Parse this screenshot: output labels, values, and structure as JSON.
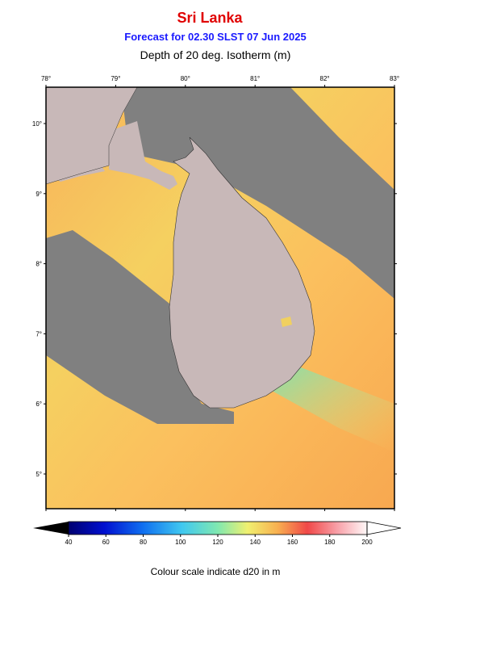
{
  "header": {
    "title": "Sri Lanka",
    "subtitle": "Forecast for  02.30 SLST 07 Jun 2025",
    "variable": "Depth of 20 deg. Isotherm (m)"
  },
  "map": {
    "lon_labels": [
      "78°",
      "79°",
      "80°",
      "81°",
      "82°",
      "83°"
    ],
    "lat_labels": [
      "10°",
      "9°",
      "8°",
      "7°",
      "6°",
      "5°"
    ]
  },
  "colorbar": {
    "ticks": [
      40,
      60,
      80,
      100,
      120,
      140,
      160,
      180,
      200
    ],
    "caption": "Colour scale indicate d20 in m"
  }
}
